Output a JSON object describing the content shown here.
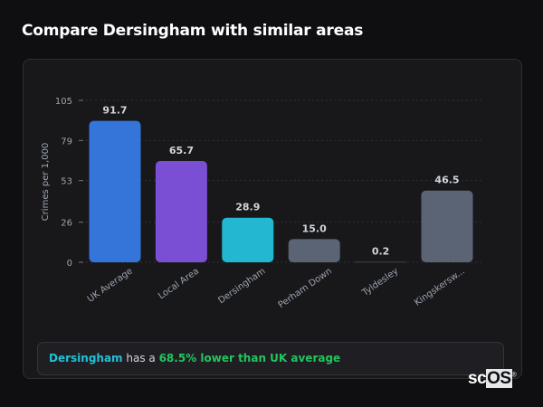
{
  "title": "Compare Dersingham with similar areas",
  "chart_data": {
    "type": "bar",
    "title": "",
    "xlabel": "",
    "ylabel": "Crimes per 1,000",
    "ylim": [
      0,
      105
    ],
    "yticks": [
      0,
      26,
      53,
      79,
      105
    ],
    "grid": true,
    "categories": [
      "UK Average",
      "Local Area",
      "Dersingham",
      "Perham Down",
      "Tyldesley",
      "Kingskersw..."
    ],
    "values": [
      91.7,
      65.7,
      28.9,
      15.0,
      0.2,
      46.5
    ],
    "value_labels": [
      "91.7",
      "65.7",
      "28.9",
      "15.0",
      "0.2",
      "46.5"
    ],
    "colors": [
      "#3375d8",
      "#7b4fd4",
      "#22b8d1",
      "#5b6475",
      "#5b6475",
      "#5b6475"
    ]
  },
  "footer": {
    "area": "Dersingham",
    "text_mid": " has a ",
    "stat": "68.5% lower than UK average"
  },
  "logo": {
    "text_a": "sc",
    "text_b": "OS"
  }
}
